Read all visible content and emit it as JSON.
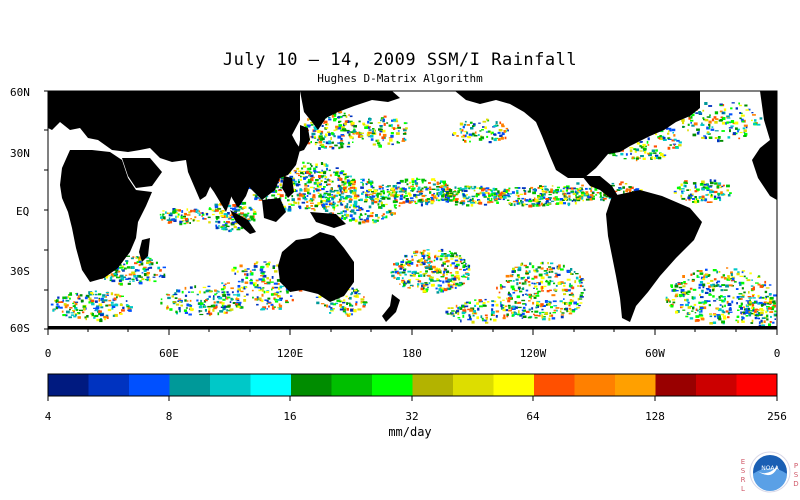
{
  "header": {
    "title": "July 10 – 14, 2009 SSM/I Rainfall",
    "subtitle": "Hughes D-Matrix Algorithm"
  },
  "map": {
    "lat_labels": [
      "60N",
      "30N",
      "EQ",
      "30S",
      "60S"
    ],
    "lon_labels": [
      "0",
      "60E",
      "120E",
      "180",
      "120W",
      "60W",
      "0"
    ]
  },
  "colorbar": {
    "tick_labels": [
      "4",
      "8",
      "16",
      "32",
      "64",
      "128",
      "256"
    ],
    "unit_label": "mm/day",
    "colors": [
      "#001a80",
      "#0033c0",
      "#0050ff",
      "#009999",
      "#00c8c8",
      "#00ffff",
      "#008c00",
      "#00bf00",
      "#00ff00",
      "#b3b300",
      "#dddd00",
      "#ffff00",
      "#ff5000",
      "#ff8000",
      "#ffa000",
      "#990000",
      "#cc0000",
      "#ff0000"
    ]
  },
  "logo": {
    "left_letters": [
      "E",
      "S",
      "R",
      "L"
    ],
    "right_letters": [
      "P",
      "S",
      "D"
    ],
    "center_text": "NOAA"
  }
}
